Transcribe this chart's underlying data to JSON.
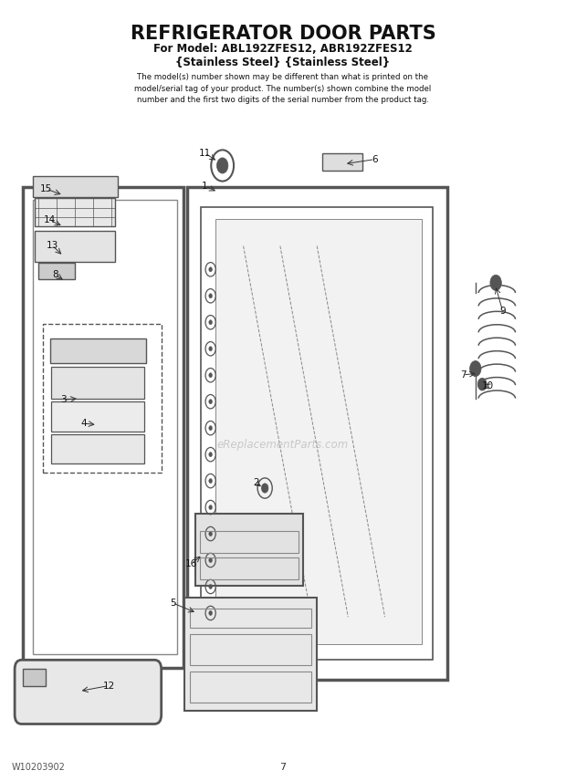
{
  "title": "REFRIGERATOR DOOR PARTS",
  "subtitle_line1": "For Model: ABL192ZFES12, ABR192ZFES12",
  "subtitle_line2": "{Stainless Steel} {Stainless Steel}",
  "description": "The model(s) number shown may be different than what is printed on the\nmodel/serial tag of your product. The number(s) shown combine the model\nnumber and the first two digits of the serial number from the product tag.",
  "watermark": "eReplacementParts.com",
  "footer_left": "W10203902",
  "footer_center": "7",
  "bg_color": "#ffffff",
  "line_color": "#333333"
}
